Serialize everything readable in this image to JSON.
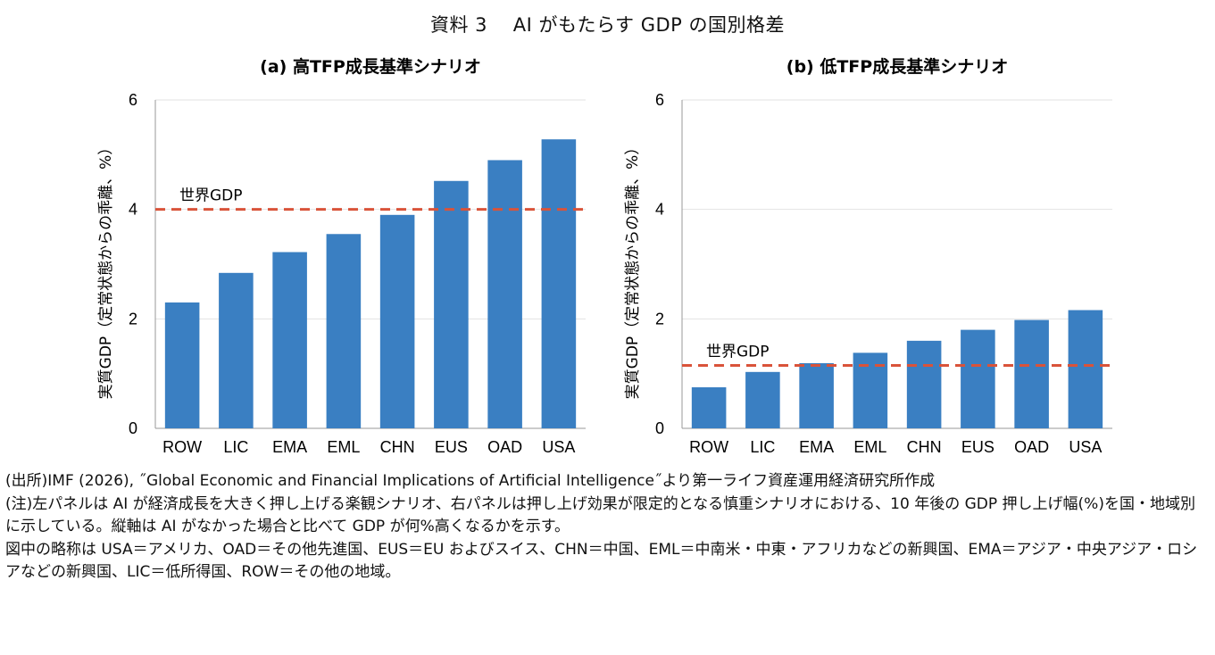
{
  "figure_title": "資料 3　 AI がもたらす GDP の国別格差",
  "colors": {
    "bar": "#3a7fc2",
    "reference_line": "#d9533a",
    "grid": "#e2e2e2",
    "axis": "#999999"
  },
  "chart_data": [
    {
      "type": "bar",
      "title": "(a) 高TFP成長基準シナリオ",
      "categories": [
        "ROW",
        "LIC",
        "EMA",
        "EML",
        "CHN",
        "EUS",
        "OAD",
        "USA"
      ],
      "values": [
        2.3,
        2.84,
        3.22,
        3.55,
        3.9,
        4.52,
        4.9,
        5.28
      ],
      "ylabel": "実質GDP（定常状態からの乖離、%）",
      "ylim": [
        0,
        6
      ],
      "yticks": [
        "0",
        "2",
        "4",
        "6"
      ],
      "grid": true,
      "reference_line": {
        "label": "世界GDP",
        "value": 4.0
      }
    },
    {
      "type": "bar",
      "title": "(b) 低TFP成長基準シナリオ",
      "categories": [
        "ROW",
        "LIC",
        "EMA",
        "EML",
        "CHN",
        "EUS",
        "OAD",
        "USA"
      ],
      "values": [
        0.75,
        1.03,
        1.19,
        1.38,
        1.6,
        1.8,
        1.98,
        2.16
      ],
      "ylabel": "実質GDP（定常状態からの乖離、%）",
      "ylim": [
        0,
        6
      ],
      "yticks": [
        "0",
        "2",
        "4",
        "6"
      ],
      "grid": true,
      "reference_line": {
        "label": "世界GDP",
        "value": 1.15
      }
    }
  ],
  "notes": {
    "source": "(出所)IMF (2026), ˝Global Economic and Financial Implications of Artificial Intelligence˝より第一ライフ資産運用経済研究所作成",
    "note_line1": "(注)左パネルは AI が経済成長を大きく押し上げる楽観シナリオ、右パネルは押し上げ効果が限定的となる慎重シナリオにおける、10 年後の GDP 押し上げ幅(%)を国・地域別に示している。縦軸は AI がなかった場合と比べて GDP が何%高くなるかを示す。",
    "note_line2": "図中の略称は USA＝アメリカ、OAD＝その他先進国、EUS＝EU およびスイス、CHN＝中国、EML＝中南米・中東・アフリカなどの新興国、EMA＝アジア・中央アジア・ロシアなどの新興国、LIC＝低所得国、ROW＝その他の地域。"
  }
}
